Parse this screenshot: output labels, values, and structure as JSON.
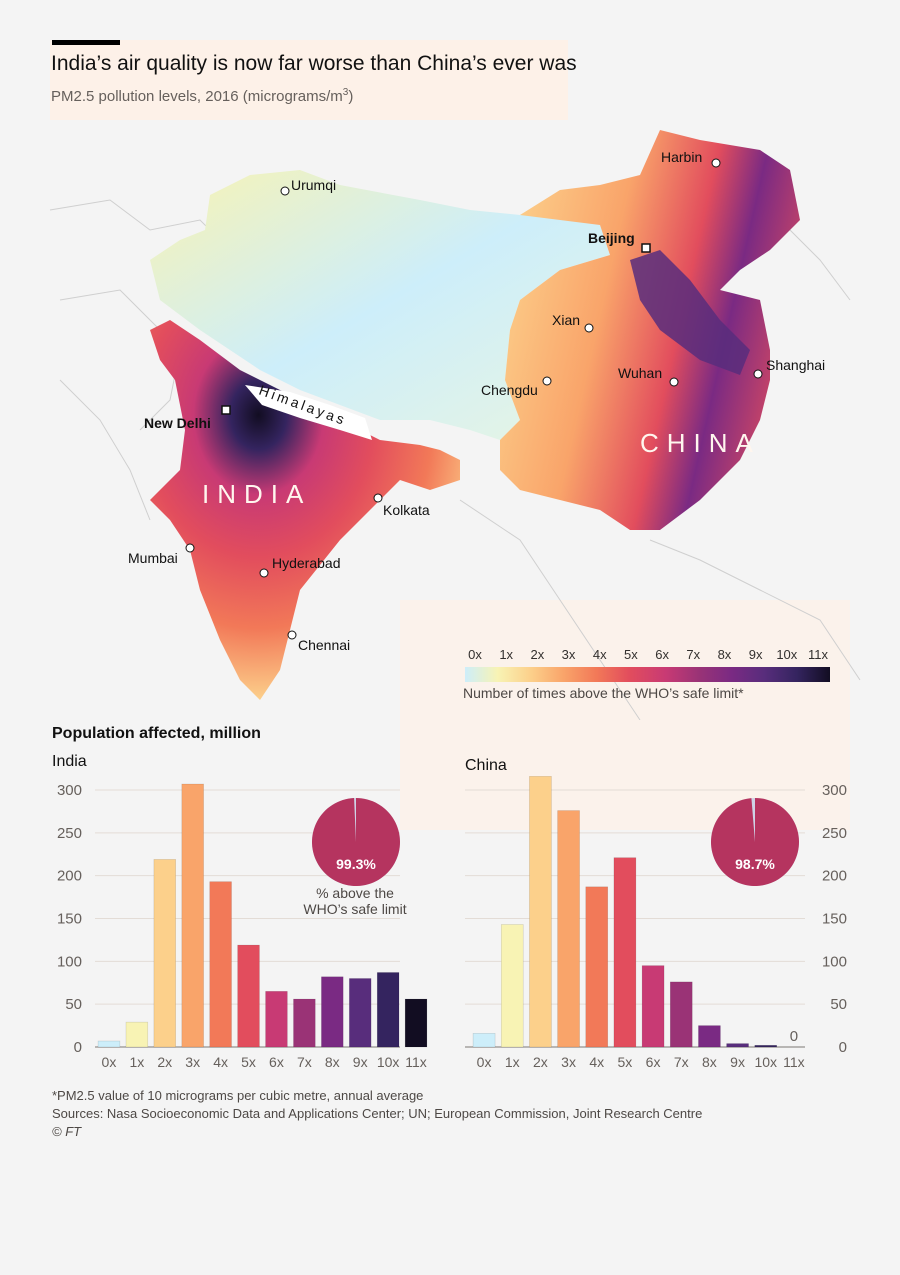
{
  "header": {
    "title": "India’s air quality is now far worse than China’s ever was",
    "subtitle_main": "PM2.5 pollution levels, 2016 (micrograms/m",
    "subtitle_sup": "3",
    "subtitle_end": ")"
  },
  "map": {
    "country_india": "INDIA",
    "country_china": "CHINA",
    "range_label": "Himalayas",
    "capitals": [
      {
        "name": "New Delhi"
      },
      {
        "name": "Beijing"
      }
    ],
    "cities": [
      {
        "name": "Urumqi"
      },
      {
        "name": "Harbin"
      },
      {
        "name": "Xian"
      },
      {
        "name": "Chengdu"
      },
      {
        "name": "Wuhan"
      },
      {
        "name": "Shanghai"
      },
      {
        "name": "Kolkata"
      },
      {
        "name": "Mumbai"
      },
      {
        "name": "Hyderabad"
      },
      {
        "name": "Chennai"
      }
    ],
    "legend": {
      "ticks": [
        "0x",
        "1x",
        "2x",
        "3x",
        "4x",
        "5x",
        "6x",
        "7x",
        "8x",
        "9x",
        "10x",
        "11x"
      ],
      "note": "Number of times above the WHO’s safe limit*",
      "colors": [
        "#cdeefa",
        "#f8f3b4",
        "#fcd08b",
        "#f9a46a",
        "#f27958",
        "#e24d5d",
        "#c83a74",
        "#9a3376",
        "#7a2a83",
        "#582d7c",
        "#34245f",
        "#120d22"
      ]
    }
  },
  "charts": {
    "section_title": "Population affected, million",
    "india_label": "India",
    "china_label": "China",
    "pie_caption_line1": "% above the",
    "pie_caption_line2": "WHO’s safe limit"
  },
  "chart_data": [
    {
      "type": "bar",
      "title": "India",
      "categories": [
        "0x",
        "1x",
        "2x",
        "3x",
        "4x",
        "5x",
        "6x",
        "7x",
        "8x",
        "9x",
        "10x",
        "11x"
      ],
      "values": [
        7,
        29,
        219,
        307,
        193,
        119,
        65,
        56,
        82,
        80,
        87,
        56
      ],
      "ylim": [
        0,
        300
      ],
      "yticks": [
        0,
        50,
        100,
        150,
        200,
        250,
        300
      ],
      "ytick_side": "left",
      "grid": true,
      "pie": {
        "label": "99.3%",
        "percent": 99.3
      }
    },
    {
      "type": "bar",
      "title": "China",
      "categories": [
        "0x",
        "1x",
        "2x",
        "3x",
        "4x",
        "5x",
        "6x",
        "7x",
        "8x",
        "9x",
        "10x",
        "11x"
      ],
      "values": [
        16,
        143,
        316,
        276,
        187,
        221,
        95,
        76,
        25,
        4,
        2,
        0
      ],
      "value_labels": {
        "11": "0"
      },
      "ylim": [
        0,
        300
      ],
      "yticks": [
        0,
        50,
        100,
        150,
        200,
        250,
        300
      ],
      "ytick_side": "right",
      "grid": true,
      "pie": {
        "label": "98.7%",
        "percent": 98.7
      }
    }
  ],
  "footer": {
    "note": "*PM2.5 value of 10 micrograms per cubic metre, annual average",
    "sources": "Sources: Nasa Socioeconomic Data and Applications Center; UN; European Commission, Joint Research Centre",
    "credit": "© FT"
  }
}
